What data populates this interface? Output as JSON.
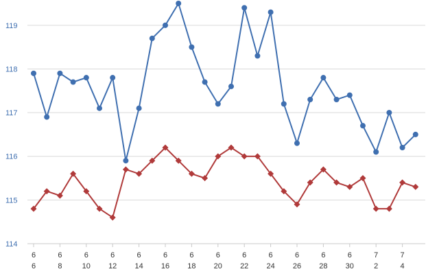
{
  "chart_data": {
    "type": "line",
    "title": "",
    "xlabel": "",
    "ylabel": "",
    "ylim": [
      114,
      119.5
    ],
    "yticks": [
      114,
      115,
      116,
      117,
      118,
      119
    ],
    "grid": "horizontal",
    "legend": "none",
    "x": [
      "6/6",
      "6/7",
      "6/8",
      "6/9",
      "6/10",
      "6/11",
      "6/12",
      "6/13",
      "6/14",
      "6/15",
      "6/16",
      "6/17",
      "6/18",
      "6/19",
      "6/20",
      "6/21",
      "6/22",
      "6/23",
      "6/24",
      "6/25",
      "6/26",
      "6/27",
      "6/28",
      "6/29",
      "6/30",
      "7/1",
      "7/2",
      "7/3",
      "7/4",
      "7/5"
    ],
    "x_tick_labels": [
      {
        "month": "6",
        "day": "6"
      },
      {
        "month": "6",
        "day": "8"
      },
      {
        "month": "6",
        "day": "10"
      },
      {
        "month": "6",
        "day": "12"
      },
      {
        "month": "6",
        "day": "14"
      },
      {
        "month": "6",
        "day": "16"
      },
      {
        "month": "6",
        "day": "18"
      },
      {
        "month": "6",
        "day": "20"
      },
      {
        "month": "6",
        "day": "22"
      },
      {
        "month": "6",
        "day": "24"
      },
      {
        "month": "6",
        "day": "26"
      },
      {
        "month": "6",
        "day": "28"
      },
      {
        "month": "6",
        "day": "30"
      },
      {
        "month": "7",
        "day": "2"
      },
      {
        "month": "7",
        "day": "4"
      }
    ],
    "series": [
      {
        "color": "#3f6fb0",
        "marker": "circle",
        "values": [
          117.9,
          116.9,
          117.9,
          117.7,
          117.8,
          117.1,
          117.8,
          115.9,
          117.1,
          118.7,
          119.0,
          119.5,
          118.5,
          117.7,
          117.2,
          117.6,
          119.4,
          118.3,
          119.3,
          117.2,
          116.3,
          117.3,
          117.8,
          117.3,
          117.4,
          116.7,
          116.1,
          117.0,
          116.2,
          116.5
        ]
      },
      {
        "color": "#b03a3a",
        "marker": "diamond",
        "values": [
          114.8,
          115.2,
          115.1,
          115.6,
          115.2,
          114.8,
          114.6,
          115.7,
          115.6,
          115.9,
          116.2,
          115.9,
          115.6,
          115.5,
          116.0,
          116.2,
          116.0,
          116.0,
          115.6,
          115.2,
          114.9,
          115.4,
          115.7,
          115.4,
          115.3,
          115.5,
          114.8,
          114.8,
          115.4,
          115.3
        ]
      }
    ]
  }
}
